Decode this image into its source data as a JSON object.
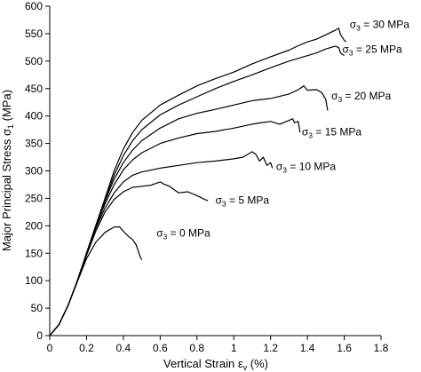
{
  "chart_data": {
    "type": "line",
    "xlabel": "Vertical Strain ε",
    "xlabel_sub": "v",
    "xlabel_unit": " (%)",
    "ylabel": "Major Principal Stress σ",
    "ylabel_sub": "1",
    "ylabel_unit": " (MPa)",
    "xlim": [
      0,
      1.8
    ],
    "ylim": [
      0,
      600
    ],
    "xticks": [
      0,
      0.2,
      0.4,
      0.6,
      0.8,
      1,
      1.2,
      1.4,
      1.6,
      1.8
    ],
    "yticks": [
      0,
      50,
      100,
      150,
      200,
      250,
      300,
      350,
      400,
      450,
      500,
      550,
      600
    ],
    "xtick_labels": [
      "0",
      "0.2",
      "0.4",
      "0.6",
      "0.8",
      "1",
      "1.2",
      "1.4",
      "1.6",
      "1.8"
    ],
    "ytick_labels": [
      "0",
      "50",
      "100",
      "150",
      "200",
      "250",
      "300",
      "350",
      "400",
      "450",
      "500",
      "550",
      "600"
    ],
    "grid": false,
    "line_color": "#000000",
    "series": [
      {
        "label_prefix": "σ",
        "label_sub": "3",
        "label_suffix": " = 30 MPa",
        "label_at": [
          1.63,
          560
        ],
        "points": [
          [
            0,
            0
          ],
          [
            0.05,
            20
          ],
          [
            0.1,
            55
          ],
          [
            0.15,
            100
          ],
          [
            0.2,
            150
          ],
          [
            0.25,
            200
          ],
          [
            0.3,
            250
          ],
          [
            0.35,
            300
          ],
          [
            0.4,
            340
          ],
          [
            0.45,
            370
          ],
          [
            0.5,
            392
          ],
          [
            0.6,
            420
          ],
          [
            0.7,
            438
          ],
          [
            0.8,
            455
          ],
          [
            0.9,
            468
          ],
          [
            1.0,
            480
          ],
          [
            1.1,
            495
          ],
          [
            1.2,
            508
          ],
          [
            1.3,
            520
          ],
          [
            1.35,
            528
          ],
          [
            1.4,
            535
          ],
          [
            1.45,
            540
          ],
          [
            1.5,
            548
          ],
          [
            1.55,
            556
          ],
          [
            1.57,
            560
          ],
          [
            1.58,
            548
          ],
          [
            1.6,
            538
          ],
          [
            1.61,
            535
          ]
        ]
      },
      {
        "label_prefix": "σ",
        "label_sub": "3",
        "label_suffix": " = 25 MPa",
        "label_at": [
          1.59,
          515
        ],
        "points": [
          [
            0,
            0
          ],
          [
            0.05,
            20
          ],
          [
            0.1,
            55
          ],
          [
            0.15,
            100
          ],
          [
            0.2,
            150
          ],
          [
            0.25,
            200
          ],
          [
            0.3,
            248
          ],
          [
            0.35,
            292
          ],
          [
            0.4,
            328
          ],
          [
            0.45,
            355
          ],
          [
            0.5,
            375
          ],
          [
            0.6,
            402
          ],
          [
            0.7,
            420
          ],
          [
            0.8,
            435
          ],
          [
            0.9,
            450
          ],
          [
            1.0,
            463
          ],
          [
            1.1,
            475
          ],
          [
            1.2,
            488
          ],
          [
            1.3,
            500
          ],
          [
            1.4,
            510
          ],
          [
            1.45,
            515
          ],
          [
            1.5,
            522
          ],
          [
            1.55,
            527
          ],
          [
            1.57,
            525
          ],
          [
            1.58,
            515
          ],
          [
            1.6,
            510
          ]
        ]
      },
      {
        "label_prefix": "σ",
        "label_sub": "3",
        "label_suffix": " = 20 MPa",
        "label_at": [
          1.53,
          430
        ],
        "points": [
          [
            0,
            0
          ],
          [
            0.05,
            20
          ],
          [
            0.1,
            55
          ],
          [
            0.15,
            100
          ],
          [
            0.2,
            150
          ],
          [
            0.25,
            200
          ],
          [
            0.3,
            245
          ],
          [
            0.35,
            285
          ],
          [
            0.4,
            315
          ],
          [
            0.45,
            338
          ],
          [
            0.5,
            355
          ],
          [
            0.6,
            378
          ],
          [
            0.7,
            395
          ],
          [
            0.8,
            405
          ],
          [
            0.9,
            412
          ],
          [
            1.0,
            420
          ],
          [
            1.1,
            428
          ],
          [
            1.2,
            432
          ],
          [
            1.3,
            440
          ],
          [
            1.35,
            448
          ],
          [
            1.38,
            455
          ],
          [
            1.4,
            447
          ],
          [
            1.45,
            448
          ],
          [
            1.48,
            442
          ],
          [
            1.5,
            430
          ],
          [
            1.51,
            410
          ]
        ]
      },
      {
        "label_prefix": "σ",
        "label_sub": "3",
        "label_suffix": " = 15 MPa",
        "label_at": [
          1.37,
          365
        ],
        "points": [
          [
            0,
            0
          ],
          [
            0.05,
            20
          ],
          [
            0.1,
            55
          ],
          [
            0.15,
            100
          ],
          [
            0.2,
            150
          ],
          [
            0.25,
            198
          ],
          [
            0.3,
            240
          ],
          [
            0.35,
            275
          ],
          [
            0.4,
            302
          ],
          [
            0.45,
            320
          ],
          [
            0.5,
            333
          ],
          [
            0.6,
            350
          ],
          [
            0.7,
            360
          ],
          [
            0.8,
            368
          ],
          [
            0.9,
            372
          ],
          [
            1.0,
            378
          ],
          [
            1.1,
            385
          ],
          [
            1.15,
            388
          ],
          [
            1.2,
            390
          ],
          [
            1.25,
            385
          ],
          [
            1.3,
            392
          ],
          [
            1.32,
            395
          ],
          [
            1.33,
            388
          ],
          [
            1.35,
            390
          ],
          [
            1.36,
            370
          ]
        ]
      },
      {
        "label_prefix": "σ",
        "label_sub": "3",
        "label_suffix": " = 10 MPa",
        "label_at": [
          1.23,
          302
        ],
        "points": [
          [
            0,
            0
          ],
          [
            0.05,
            20
          ],
          [
            0.1,
            55
          ],
          [
            0.15,
            100
          ],
          [
            0.2,
            148
          ],
          [
            0.25,
            195
          ],
          [
            0.3,
            232
          ],
          [
            0.35,
            260
          ],
          [
            0.4,
            280
          ],
          [
            0.45,
            292
          ],
          [
            0.5,
            298
          ],
          [
            0.6,
            305
          ],
          [
            0.7,
            310
          ],
          [
            0.8,
            315
          ],
          [
            0.9,
            318
          ],
          [
            1.0,
            322
          ],
          [
            1.05,
            325
          ],
          [
            1.1,
            335
          ],
          [
            1.12,
            330
          ],
          [
            1.14,
            318
          ],
          [
            1.16,
            325
          ],
          [
            1.18,
            310
          ],
          [
            1.2,
            315
          ],
          [
            1.21,
            305
          ]
        ]
      },
      {
        "label_prefix": "σ",
        "label_sub": "3",
        "label_suffix": " = 5 MPa",
        "label_at": [
          0.9,
          240
        ],
        "points": [
          [
            0,
            0
          ],
          [
            0.05,
            20
          ],
          [
            0.1,
            55
          ],
          [
            0.15,
            100
          ],
          [
            0.2,
            146
          ],
          [
            0.25,
            190
          ],
          [
            0.3,
            225
          ],
          [
            0.35,
            248
          ],
          [
            0.4,
            262
          ],
          [
            0.45,
            270
          ],
          [
            0.5,
            272
          ],
          [
            0.55,
            274
          ],
          [
            0.6,
            280
          ],
          [
            0.62,
            276
          ],
          [
            0.65,
            272
          ],
          [
            0.7,
            260
          ],
          [
            0.75,
            262
          ],
          [
            0.8,
            255
          ],
          [
            0.83,
            250
          ],
          [
            0.85,
            247
          ],
          [
            0.86,
            246
          ]
        ]
      },
      {
        "label_prefix": "σ",
        "label_sub": "3",
        "label_suffix": " = 0 MPa",
        "label_at": [
          0.58,
          180
        ],
        "points": [
          [
            0,
            0
          ],
          [
            0.05,
            20
          ],
          [
            0.1,
            55
          ],
          [
            0.15,
            98
          ],
          [
            0.2,
            140
          ],
          [
            0.25,
            170
          ],
          [
            0.3,
            188
          ],
          [
            0.35,
            198
          ],
          [
            0.38,
            198
          ],
          [
            0.4,
            190
          ],
          [
            0.43,
            180
          ],
          [
            0.45,
            175
          ],
          [
            0.47,
            165
          ],
          [
            0.48,
            155
          ],
          [
            0.49,
            145
          ],
          [
            0.5,
            138
          ]
        ]
      }
    ]
  }
}
